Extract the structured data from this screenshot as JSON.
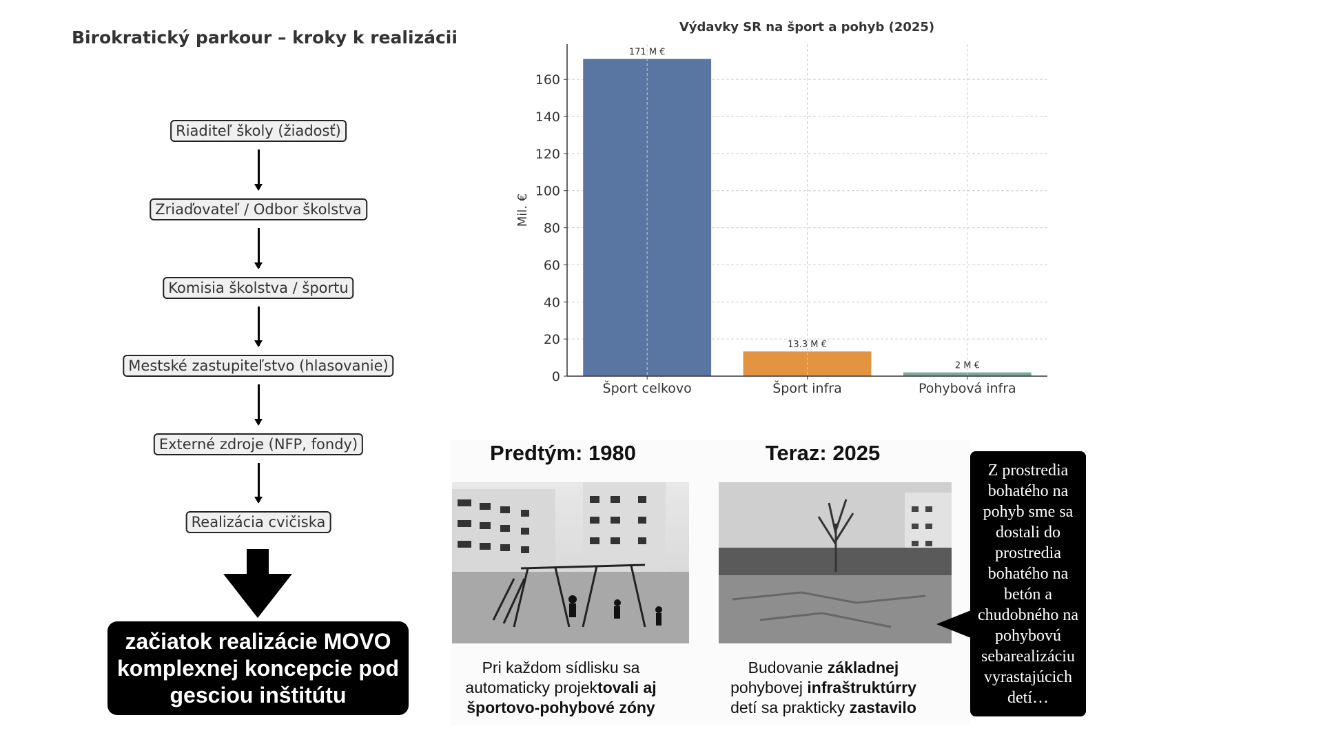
{
  "title": "Birokratický parkour – kroky k realizácii",
  "flow": {
    "steps": [
      "Riaditeľ školy (žiadosť)",
      "Zriaďovateľ / Odbor školstva",
      "Komisia školstva / športu",
      "Mestské zastupiteľstvo (hlasovanie)",
      "Externé zdroje (NFP, fondy)",
      "Realizácia cvičiska"
    ],
    "result_lines": [
      "začiatok realizácie MOVO",
      "komplexnej koncepcie pod",
      "gesciou inštitútu"
    ]
  },
  "chart_data": {
    "type": "bar",
    "title": "Výdavky SR na šport a pohyb (2025)",
    "xlabel": "",
    "ylabel": "Mil. €",
    "categories": [
      "Šport celkovo",
      "Šport infra",
      "Pohybová infra"
    ],
    "values": [
      171,
      13.3,
      2
    ],
    "data_labels": [
      "171 M €",
      "13.3 M €",
      "2 M €"
    ],
    "colors": [
      "#5876a1",
      "#e39441",
      "#76ab9e"
    ],
    "ylim": [
      0,
      179
    ],
    "yticks": [
      0,
      20,
      40,
      60,
      80,
      100,
      120,
      140,
      160
    ],
    "grid": true
  },
  "comparison": {
    "before": {
      "heading": "Predtým: 1980",
      "caption_lines": [
        [
          {
            "t": "Pri každom sídlisku sa",
            "b": false
          }
        ],
        [
          {
            "t": "automaticky projek",
            "b": false
          },
          {
            "t": "tovali aj",
            "b": true
          }
        ],
        [
          {
            "t": "športovo-pohybové zóny",
            "b": true
          }
        ]
      ]
    },
    "after": {
      "heading": "Teraz: 2025",
      "caption_lines": [
        [
          {
            "t": "Budovanie ",
            "b": false
          },
          {
            "t": "základnej",
            "b": true
          }
        ],
        [
          {
            "t": "pohybovej ",
            "b": false
          },
          {
            "t": "infraštruktúrry",
            "b": true
          }
        ],
        [
          {
            "t": "detí sa prakticky ",
            "b": false
          },
          {
            "t": "zastavilo",
            "b": true
          }
        ]
      ]
    }
  },
  "callout": {
    "lines": [
      "Z prostredia",
      "bohatého na",
      "pohyb sme sa",
      "dostali do",
      "prostredia",
      "bohatého na",
      "betón a",
      "chudobného na",
      "pohybovú",
      "sebarealizáciu",
      "vyrastajúcich",
      "detí…"
    ]
  }
}
